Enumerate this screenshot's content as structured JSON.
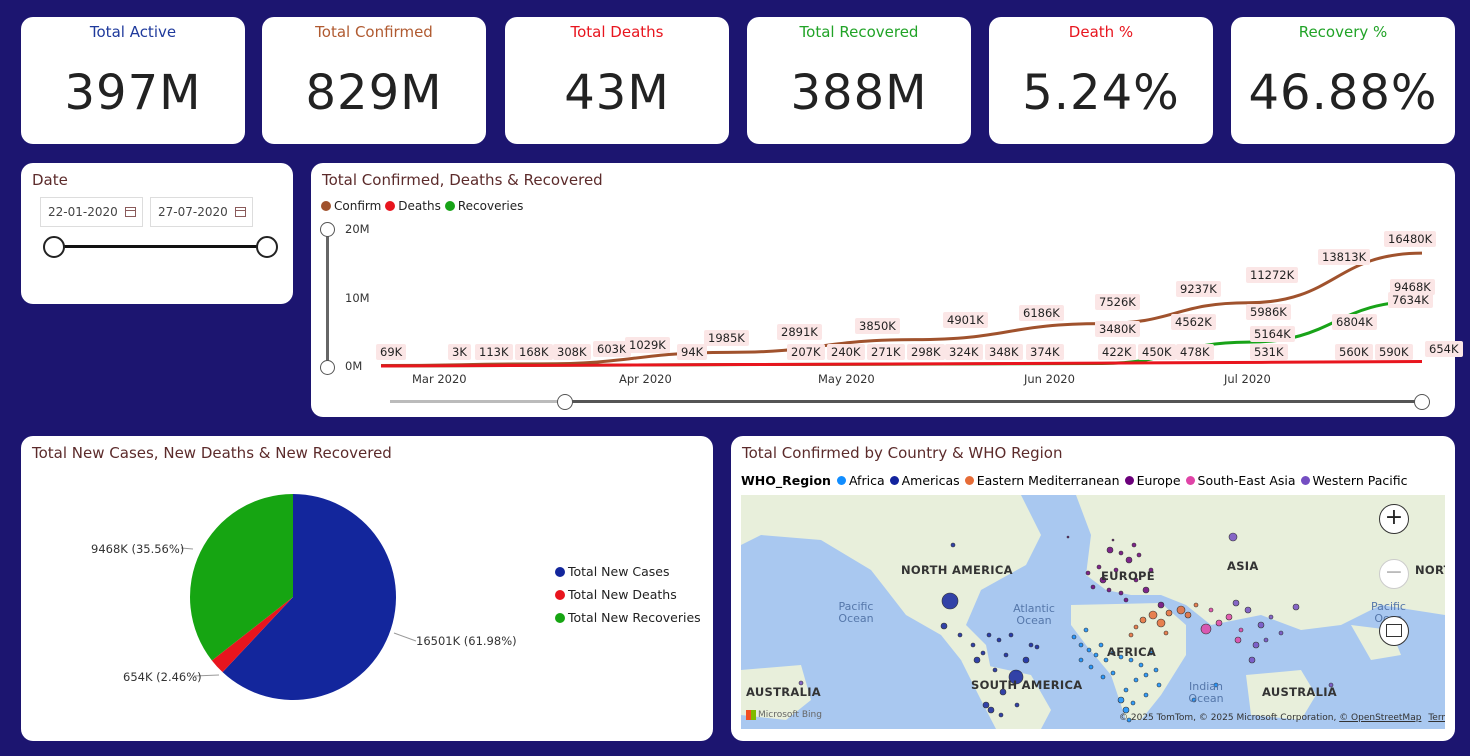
{
  "kpis": [
    {
      "title": "Total Active",
      "value": "397M",
      "color": "#1f3a9c"
    },
    {
      "title": "Total Confirmed",
      "value": "829M",
      "color": "#b05a30"
    },
    {
      "title": "Total Deaths",
      "value": "43M",
      "color": "#e8151e"
    },
    {
      "title": "Total Recovered",
      "value": "388M",
      "color": "#21a327"
    },
    {
      "title": "Death %",
      "value": "5.24%",
      "color": "#e8151e"
    },
    {
      "title": "Recovery %",
      "value": "46.88%",
      "color": "#21a327"
    }
  ],
  "date_slicer": {
    "title": "Date",
    "start": "22-01-2020",
    "end": "27-07-2020"
  },
  "line_chart": {
    "title": "Total Confirmed, Deaths & Recovered",
    "legend": [
      {
        "name": "Confirm",
        "color": "#a0522d"
      },
      {
        "name": "Deaths",
        "color": "#e8151e"
      },
      {
        "name": "Recoveries",
        "color": "#18a318"
      }
    ],
    "y_ticks": [
      "20M",
      "10M",
      "0M"
    ],
    "x_ticks": [
      "Mar 2020",
      "Apr 2020",
      "May 2020",
      "Jun 2020",
      "Jul 2020"
    ]
  },
  "chart_data": [
    {
      "type": "line",
      "title": "Total Confirmed, Deaths & Recovered",
      "y_range": [
        0,
        20000000
      ],
      "x_range": [
        "2020-02-22",
        "2020-07-27"
      ],
      "series": [
        {
          "name": "Confirm",
          "color": "#a0522d",
          "x": [
            "2020-02-22",
            "2020-03-17",
            "2020-04-14",
            "2020-05-12",
            "2020-06-09",
            "2020-07-01",
            "2020-07-27"
          ],
          "y": [
            69000,
            308000,
            1985000,
            3850000,
            6186000,
            9237000,
            16480000
          ],
          "labels": [
            "69K",
            "3K",
            "113K",
            "168K",
            "308K",
            "603K",
            "1029K",
            "94K",
            "1985K",
            "2891K",
            "3850K",
            "4901K",
            "6186K",
            "7526K",
            "9237K",
            "11272K",
            "13813K",
            "16480K"
          ]
        },
        {
          "name": "Recoveries",
          "color": "#18a318",
          "x": [
            "2020-02-22",
            "2020-04-14",
            "2020-05-12",
            "2020-06-09",
            "2020-07-01",
            "2020-07-27"
          ],
          "y": [
            0,
            207000,
            271000,
            374000,
            3480000,
            9468000
          ],
          "labels": [
            "207K",
            "240K",
            "271K",
            "298K",
            "324K",
            "348K",
            "374K",
            "3480K",
            "4562K",
            "5164K",
            "5986K",
            "6804K",
            "7634K",
            "9468K"
          ]
        },
        {
          "name": "Deaths",
          "color": "#e8151e",
          "x": [
            "2020-02-22",
            "2020-06-09",
            "2020-07-27"
          ],
          "y": [
            0,
            422000,
            654000
          ],
          "labels": [
            "422K",
            "450K",
            "478K",
            "531K",
            "560K",
            "590K",
            "654K"
          ]
        }
      ]
    },
    {
      "type": "pie",
      "title": "Total New Cases, New Deaths & New Recovered",
      "slices": [
        {
          "name": "Total New Cases",
          "value": 16501,
          "label": "16501K (61.98%)",
          "color": "#13269c"
        },
        {
          "name": "Total New Deaths",
          "value": 654,
          "label": "654K (2.46%)",
          "color": "#e8151e"
        },
        {
          "name": "Total New Recoveries",
          "value": 9468,
          "label": "9468K (35.56%)",
          "color": "#16a512"
        }
      ]
    }
  ],
  "line_labels": [
    {
      "t": "69K"
    },
    {
      "t": "3K"
    },
    {
      "t": "113K"
    },
    {
      "t": "168K"
    },
    {
      "t": "308K"
    },
    {
      "t": "603K"
    },
    {
      "t": "1029K"
    },
    {
      "t": "94K"
    },
    {
      "t": "1985K"
    },
    {
      "t": "2891K"
    },
    {
      "t": "207K"
    },
    {
      "t": "240K"
    },
    {
      "t": "3850K"
    },
    {
      "t": "271K"
    },
    {
      "t": "298K"
    },
    {
      "t": "4901K"
    },
    {
      "t": "324K"
    },
    {
      "t": "348K"
    },
    {
      "t": "6186K"
    },
    {
      "t": "374K"
    },
    {
      "t": "7526K"
    },
    {
      "t": "3480K"
    },
    {
      "t": "422K"
    },
    {
      "t": "450K"
    },
    {
      "t": "9237K"
    },
    {
      "t": "4562K"
    },
    {
      "t": "478K"
    },
    {
      "t": "11272K"
    },
    {
      "t": "5986K"
    },
    {
      "t": "5164K"
    },
    {
      "t": "531K"
    },
    {
      "t": "13813K"
    },
    {
      "t": "6804K"
    },
    {
      "t": "560K"
    },
    {
      "t": "7634K"
    },
    {
      "t": "590K"
    },
    {
      "t": "16480K"
    },
    {
      "t": "9468K"
    },
    {
      "t": "654K"
    }
  ],
  "pie_chart": {
    "title": "Total New Cases, New Deaths & New Recovered"
  },
  "map": {
    "title": "Total Confirmed by Country & WHO Region",
    "legend_title": "WHO_Region",
    "regions": [
      {
        "name": "Africa",
        "color": "#118dff"
      },
      {
        "name": "Americas",
        "color": "#12239e"
      },
      {
        "name": "Eastern Mediterranean",
        "color": "#e66c37"
      },
      {
        "name": "Europe",
        "color": "#6b007b"
      },
      {
        "name": "South-East Asia",
        "color": "#e044a7"
      },
      {
        "name": "Western Pacific",
        "color": "#744ec2"
      }
    ],
    "labels": {
      "north_america": "NORTH AMERICA",
      "europe": "EUROPE",
      "asia": "ASIA",
      "africa": "AFRICA",
      "south_america": "SOUTH AMERICA",
      "australia_left": "AUSTRALIA",
      "australia_right": "AUSTRALIA",
      "nor": "NORT"
    },
    "oceans": {
      "pacific_left": "Pacific Ocean",
      "atlantic": "Atlantic Ocean",
      "indian": "Indian Ocean",
      "pacific_right": "Pacific Ocea"
    },
    "attribution": "© 2025 TomTom, © 2025 Microsoft Corporation,",
    "osm": "© OpenStreetMap",
    "terms": "Terms",
    "bing": "Microsoft Bing",
    "zoom_in": "+",
    "zoom_out": "−"
  }
}
